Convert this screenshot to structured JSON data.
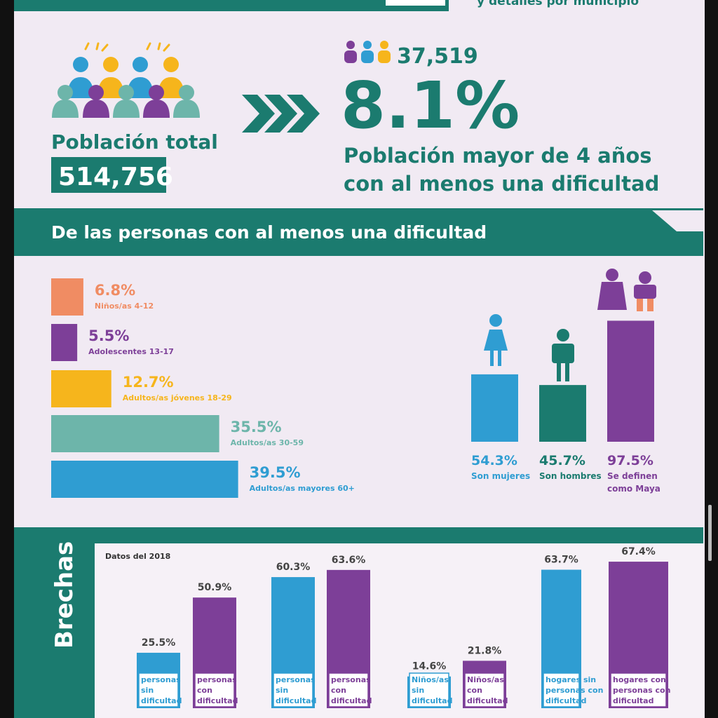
{
  "header": {
    "subtitle_fragment": "y detalles por municipio"
  },
  "population": {
    "label": "Población total",
    "total": "514,756",
    "with_difficulty": "37,519",
    "percent": "8.1%",
    "description_lines": [
      "Población mayor de 4 años",
      "con al menos una dificultad"
    ]
  },
  "section_title": "De las personas con al menos una dificultad",
  "age_groups": {
    "categories": [
      "Niños/as 4-12",
      "Adolescentes 13-17",
      "Adultos/as  jóvenes 18-29",
      "Adultos/as 30-59",
      "Adultos/as mayores 60+"
    ],
    "values": [
      6.8,
      5.5,
      12.7,
      35.5,
      39.5
    ],
    "value_labels": [
      "6.8%",
      "5.5%",
      "12.7%",
      "35.5%",
      "39.5%"
    ],
    "colors": [
      "#f08c63",
      "#7d3f98",
      "#f6b51c",
      "#6db5aa",
      "#2f9dd2"
    ]
  },
  "identity": {
    "categories": [
      [
        "Son mujeres"
      ],
      [
        "Son hombres"
      ],
      [
        "Se definen",
        "como Maya"
      ]
    ],
    "values": [
      54.3,
      45.7,
      97.5
    ],
    "value_labels": [
      "54.3%",
      "45.7%",
      "97.5%"
    ],
    "colors": [
      "#2f9dd2",
      "#1b7b6f",
      "#7d3f98"
    ]
  },
  "gaps": {
    "title": "Brechas",
    "note": "Datos del 2018",
    "groups": [
      {
        "items": [
          {
            "value": 25.5,
            "value_label": "25.5%",
            "label_lines": [
              "personas",
              "sin",
              "dificultad"
            ],
            "color": "#2f9dd2"
          },
          {
            "value": 50.9,
            "value_label": "50.9%",
            "label_lines": [
              "personas",
              "con",
              "dificultad"
            ],
            "color": "#7d3f98"
          }
        ]
      },
      {
        "items": [
          {
            "value": 60.3,
            "value_label": "60.3%",
            "label_lines": [
              "personas",
              "sin",
              "dificultad"
            ],
            "color": "#2f9dd2"
          },
          {
            "value": 63.6,
            "value_label": "63.6%",
            "label_lines": [
              "personas",
              "con",
              "dificultad"
            ],
            "color": "#7d3f98"
          }
        ]
      },
      {
        "items": [
          {
            "value": 14.6,
            "value_label": "14.6%",
            "label_lines": [
              "Niños/as",
              "sin",
              "dificultad"
            ],
            "color": "#2f9dd2"
          },
          {
            "value": 21.8,
            "value_label": "21.8%",
            "label_lines": [
              "Niños/as",
              "con",
              "dificultad"
            ],
            "color": "#7d3f98"
          }
        ]
      },
      {
        "items": [
          {
            "value": 63.7,
            "value_label": "63.7%",
            "label_lines": [
              "hogares sin",
              "personas con",
              "dificultad"
            ],
            "color": "#2f9dd2"
          },
          {
            "value": 67.4,
            "value_label": "67.4%",
            "label_lines": [
              "hogares con",
              "personas con",
              "dificultad"
            ],
            "color": "#7d3f98"
          }
        ]
      }
    ]
  }
}
